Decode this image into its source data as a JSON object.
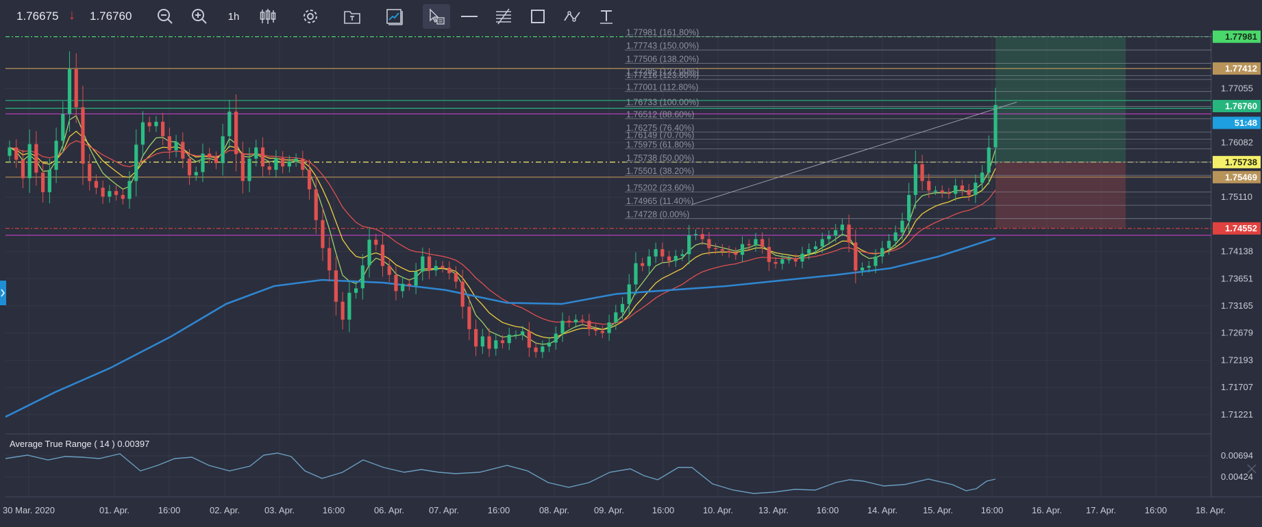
{
  "toolbar": {
    "bid": "1.76675",
    "ask": "1.76760",
    "timeframe": "1h"
  },
  "price_axis": {
    "ticks": [
      "1.77055",
      "1.76082",
      "1.75110",
      "1.74138",
      "1.73651",
      "1.73165",
      "1.72679",
      "1.72193",
      "1.71707",
      "1.71221"
    ],
    "badges": [
      {
        "name": "target-price-badge",
        "label": "1.77981",
        "bg": "#4ad86a",
        "fg": "#1c2a1c"
      },
      {
        "name": "fib-high-badge",
        "label": "1.77412",
        "bg": "#b8945a",
        "fg": "#ffffff"
      },
      {
        "name": "current-price-badge",
        "label": "1.76760",
        "bg": "#27b57e",
        "fg": "#ffffff"
      },
      {
        "name": "candle-timer-badge",
        "label": "51:48",
        "bg": "#1e9fe0",
        "fg": "#ffffff"
      },
      {
        "name": "entry-price-badge",
        "label": "1.75738",
        "bg": "#f4f06a",
        "fg": "#2a2a10"
      },
      {
        "name": "support-price-badge",
        "label": "1.75469",
        "bg": "#b8945a",
        "fg": "#ffffff"
      },
      {
        "name": "stop-price-badge",
        "label": "1.74552",
        "bg": "#e0423f",
        "fg": "#ffffff"
      }
    ]
  },
  "fib_levels": [
    {
      "label": "1.77981 (161.80%)",
      "price": 1.77981
    },
    {
      "label": "1.77743 (150.00%)",
      "price": 1.77743
    },
    {
      "label": "1.77506 (138.20%)",
      "price": 1.77506
    },
    {
      "label": "1.77285 (127.00%)",
      "price": 1.77285
    },
    {
      "label": "1.77216 (123.60%)",
      "price": 1.77216
    },
    {
      "label": "1.77001 (112.80%)",
      "price": 1.77001
    },
    {
      "label": "1.76733 (100.00%)",
      "price": 1.76733
    },
    {
      "label": "1.76512 (88.60%)",
      "price": 1.76512
    },
    {
      "label": "1.76275 (76.40%)",
      "price": 1.76275
    },
    {
      "label": "1.76149 (70.70%)",
      "price": 1.76149
    },
    {
      "label": "1.75975 (61.80%)",
      "price": 1.75975
    },
    {
      "label": "1.75738 (50.00%)",
      "price": 1.75738
    },
    {
      "label": "1.75501 (38.20%)",
      "price": 1.75501
    },
    {
      "label": "1.75202 (23.60%)",
      "price": 1.75202
    },
    {
      "label": "1.74965 (11.40%)",
      "price": 1.74965
    },
    {
      "label": "1.74728 (0.00%)",
      "price": 1.74728
    }
  ],
  "horizontal_lines": [
    {
      "price": 1.77981,
      "color": "#4ad86a",
      "dash": "6,3,2,3"
    },
    {
      "price": 1.77412,
      "color": "#b8945a",
      "dash": ""
    },
    {
      "price": 1.7684,
      "color": "#27b57e",
      "dash": ""
    },
    {
      "price": 1.767,
      "color": "#27b57e",
      "dash": ""
    },
    {
      "price": 1.766,
      "color": "#c040c0",
      "dash": ""
    },
    {
      "price": 1.75738,
      "color": "#f4f06a",
      "dash": "8,4,2,4"
    },
    {
      "price": 1.75469,
      "color": "#b8945a",
      "dash": ""
    },
    {
      "price": 1.74552,
      "color": "#e0423f",
      "dash": "6,3,2,3"
    },
    {
      "price": 1.7443,
      "color": "#c040c0",
      "dash": ""
    }
  ],
  "atr": {
    "label": "Average True Range ( 14 ) 0.00397",
    "ticks": [
      "0.00694",
      "0.00424"
    ]
  },
  "time_axis": [
    "30 Mar. 2020",
    "01. Apr.",
    "16:00",
    "02. Apr.",
    "03. Apr.",
    "16:00",
    "06. Apr.",
    "07. Apr.",
    "16:00",
    "08. Apr.",
    "09. Apr.",
    "16:00",
    "10. Apr.",
    "13. Apr.",
    "16:00",
    "14. Apr.",
    "15. Apr.",
    "16:00",
    "16. Apr.",
    "17. Apr.",
    "16:00",
    "18. Apr."
  ],
  "chart_data": {
    "type": "line",
    "title": "",
    "xlabel": "",
    "ylabel": "",
    "ylim": [
      1.709,
      1.7805
    ],
    "close_series": [
      1.76,
      1.7578,
      1.7545,
      1.7606,
      1.7555,
      1.752,
      1.756,
      1.7612,
      1.766,
      1.774,
      1.7672,
      1.7571,
      1.754,
      1.7528,
      1.7512,
      1.7522,
      1.7515,
      1.7508,
      1.754,
      1.7605,
      1.7645,
      1.7638,
      1.7646,
      1.762,
      1.7595,
      1.761,
      1.758,
      1.755,
      1.7556,
      1.7589,
      1.7582,
      1.7572,
      1.762,
      1.7664,
      1.7588,
      1.754,
      1.758,
      1.76,
      1.7566,
      1.756,
      1.7581,
      1.7566,
      1.7575,
      1.758,
      1.756,
      1.7525,
      1.747,
      1.742,
      1.738,
      1.7324,
      1.7292,
      1.734,
      1.7348,
      1.7389,
      1.7435,
      1.7426,
      1.7388,
      1.7372,
      1.7343,
      1.7356,
      1.7353,
      1.7378,
      1.7405,
      1.738,
      1.7388,
      1.7385,
      1.7375,
      1.736,
      1.7315,
      1.7275,
      1.7244,
      1.7262,
      1.724,
      1.7255,
      1.725,
      1.7265,
      1.7265,
      1.7271,
      1.7242,
      1.7234,
      1.7244,
      1.7251,
      1.7267,
      1.729,
      1.7287,
      1.7292,
      1.729,
      1.7275,
      1.7272,
      1.7268,
      1.7287,
      1.7305,
      1.732,
      1.7355,
      1.7393,
      1.7388,
      1.7405,
      1.7418,
      1.7405,
      1.7397,
      1.7406,
      1.7409,
      1.7443,
      1.7445,
      1.7436,
      1.742,
      1.7418,
      1.7415,
      1.7412,
      1.7408,
      1.7427,
      1.7425,
      1.7436,
      1.7422,
      1.7395,
      1.7392,
      1.74,
      1.74,
      1.7396,
      1.741,
      1.7418,
      1.7423,
      1.7436,
      1.7442,
      1.7452,
      1.7462,
      1.743,
      1.738,
      1.7385,
      1.7388,
      1.7405,
      1.742,
      1.7433,
      1.7448,
      1.7469,
      1.7515,
      1.757,
      1.754,
      1.7523,
      1.7523,
      1.7519,
      1.7517,
      1.7532,
      1.7524,
      1.7515,
      1.7537,
      1.7555,
      1.76,
      1.7676
    ]
  }
}
